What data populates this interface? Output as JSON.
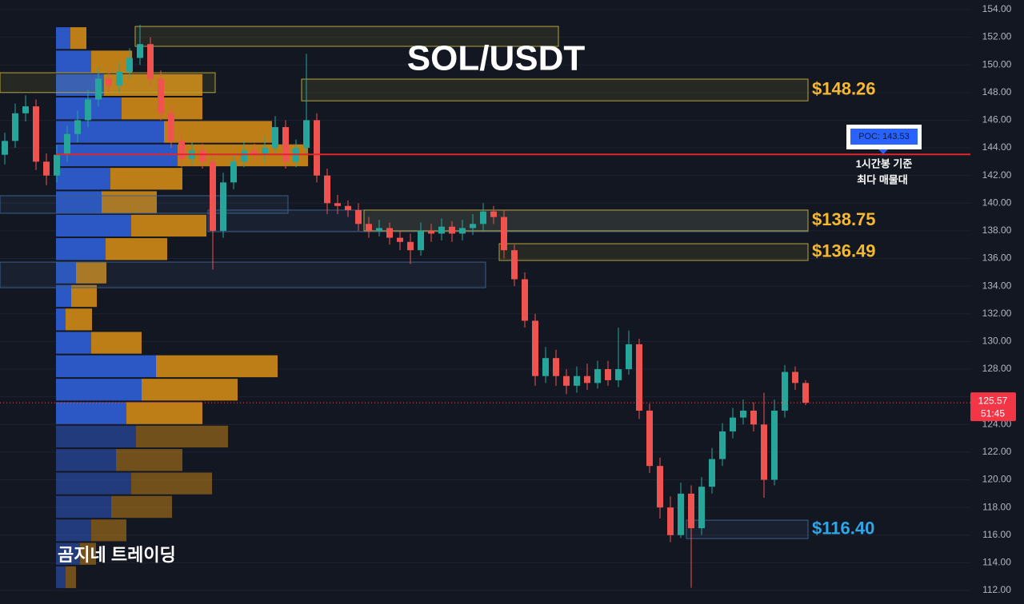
{
  "chart_data": {
    "type": "candlestick",
    "title": "SOL/USDT",
    "watermark": "곰지네 트레이딩",
    "ylim": [
      111.02,
      154.69
    ],
    "yticks": [
      {
        "value": 112,
        "label": "112.00"
      },
      {
        "value": 114,
        "label": "114.00"
      },
      {
        "value": 116,
        "label": "116.00"
      },
      {
        "value": 118,
        "label": "118.00"
      },
      {
        "value": 120,
        "label": "120.00"
      },
      {
        "value": 122,
        "label": "122.00"
      },
      {
        "value": 124,
        "label": "124.00"
      },
      {
        "value": 126,
        "label": "126.00"
      },
      {
        "value": 128,
        "label": "128.00"
      },
      {
        "value": 130,
        "label": "130.00"
      },
      {
        "value": 132,
        "label": "132.00"
      },
      {
        "value": 134,
        "label": "134.00"
      },
      {
        "value": 136,
        "label": "136.00"
      },
      {
        "value": 138,
        "label": "138.00"
      },
      {
        "value": 140,
        "label": "140.00"
      },
      {
        "value": 142,
        "label": "142.00"
      },
      {
        "value": 144,
        "label": "144.00"
      },
      {
        "value": 146,
        "label": "146.00"
      },
      {
        "value": 148,
        "label": "148.00"
      },
      {
        "value": 150,
        "label": "150.00"
      },
      {
        "value": 152,
        "label": "152.00"
      },
      {
        "value": 154,
        "label": "154.00"
      }
    ],
    "grid": true,
    "up_color": "#26a69a",
    "down_color": "#ef5350",
    "open": [
      143.5,
      144.5,
      146.5,
      147,
      143,
      142,
      143.5,
      145,
      146,
      147.5,
      149,
      148.5,
      149.5,
      150.5,
      151.5,
      149,
      146.5,
      144.5,
      143.2,
      143.8,
      143,
      138,
      141.5,
      143,
      143.8,
      143.5,
      144,
      145.5,
      143,
      144,
      146,
      142,
      140,
      139.8,
      139.5,
      138.5,
      138,
      138.2,
      137.5,
      137.2,
      136.6,
      138,
      137.8,
      138.3,
      137.8,
      138.2,
      138.5,
      139.4,
      139,
      136.6,
      134.5,
      131.5,
      127.5,
      128.8,
      127.5,
      126.8,
      127.5,
      127,
      128,
      127.2,
      128,
      129.8,
      125,
      121,
      118,
      116,
      119,
      116.5,
      119.5,
      121.5,
      123.5,
      124.5,
      125,
      124,
      120,
      125,
      127.8,
      127
    ],
    "high": [
      145.1,
      147.2,
      147.8,
      147.5,
      143.6,
      144.2,
      145.6,
      146.7,
      148.2,
      149.8,
      149.6,
      150.2,
      151.2,
      152.9,
      152,
      149.6,
      147,
      145,
      144.4,
      144.3,
      143.5,
      142.2,
      143.6,
      144.5,
      144.3,
      144.8,
      146.3,
      146,
      144.6,
      150.8,
      146.5,
      142.5,
      140.6,
      140.2,
      140,
      139,
      138.8,
      138.6,
      138,
      137.8,
      138.6,
      138.5,
      138.9,
      138.7,
      138.8,
      139.2,
      140,
      139.8,
      139.5,
      137,
      135,
      132,
      129.6,
      129.4,
      128,
      128.2,
      128.4,
      128.6,
      128.6,
      131,
      130.8,
      130.2,
      125.5,
      121.6,
      118.8,
      119.8,
      119.6,
      120.2,
      122.3,
      124.1,
      125.2,
      125.8,
      125.6,
      126.3,
      125.8,
      128.3,
      128.2,
      127.2
    ],
    "low": [
      142.8,
      144,
      145.9,
      142.4,
      141.3,
      141.5,
      143,
      144.4,
      145.5,
      147,
      148,
      148,
      149,
      150,
      148.5,
      146,
      144,
      142.6,
      142.8,
      142.5,
      135.2,
      137.5,
      141,
      142.6,
      143,
      142.9,
      143.5,
      142.5,
      142.6,
      143.5,
      141.5,
      139.2,
      139.2,
      139,
      138,
      137.5,
      137.6,
      137,
      136.6,
      135.6,
      136.2,
      137.2,
      137.3,
      137.2,
      137.3,
      137.7,
      138,
      138.5,
      136,
      134,
      131,
      126.8,
      127,
      126.8,
      126.2,
      126.3,
      126.5,
      126.6,
      126.8,
      126.7,
      127.6,
      124.4,
      120.5,
      117.2,
      115.5,
      115.8,
      112.2,
      116,
      119,
      121,
      123,
      124,
      123.5,
      118.7,
      119.6,
      124.5,
      126.5,
      125.4
    ],
    "close": [
      144.5,
      146.5,
      147,
      143,
      142,
      143.5,
      145,
      146,
      147.5,
      149,
      148.5,
      149.5,
      150.5,
      151.5,
      149,
      146.5,
      144.5,
      143.2,
      143.8,
      143,
      138,
      141.5,
      143,
      143.8,
      143.5,
      144,
      145.5,
      143,
      144,
      146,
      142,
      140,
      139.8,
      139.5,
      138.5,
      138,
      138.2,
      137.5,
      137.2,
      136.6,
      138,
      137.8,
      138.3,
      137.8,
      138.2,
      138.5,
      139.4,
      139,
      136.6,
      134.5,
      131.5,
      127.5,
      128.8,
      127.5,
      126.8,
      127.5,
      127,
      128,
      127.2,
      128,
      129.8,
      125,
      121,
      118,
      116,
      119,
      116.5,
      119.5,
      121.5,
      123.5,
      124.5,
      125,
      124,
      120,
      125,
      127.8,
      127,
      125.57
    ],
    "volume_profile": {
      "bins": [
        152.78,
        151.09,
        149.39,
        147.7,
        146.0,
        144.31,
        142.61,
        140.92,
        139.22,
        137.53,
        135.83,
        134.14,
        132.44,
        130.75,
        129.06,
        127.36,
        125.67,
        123.97,
        122.28,
        120.58,
        118.89,
        117.19,
        115.5,
        113.8,
        112.11
      ],
      "buy_color": "#2f5fd6",
      "sell_color": "#d08a16",
      "buy": [
        18,
        44,
        60,
        82,
        135,
        152,
        68,
        57,
        94,
        62,
        25,
        19,
        12,
        44,
        125,
        107,
        88,
        100,
        75,
        94,
        69,
        44,
        30,
        12
      ],
      "sell": [
        20,
        51,
        123,
        101,
        135,
        163,
        90,
        69,
        94,
        77,
        38,
        32,
        33,
        63,
        152,
        120,
        95,
        115,
        83,
        101,
        76,
        44,
        20,
        13
      ]
    },
    "zones": [
      {
        "kind": "supply",
        "low": 151.34,
        "high": 152.78,
        "from": 13,
        "to": 53
      },
      {
        "kind": "supply",
        "low": 148.0,
        "high": 149.43,
        "from": 0,
        "to": 20
      },
      {
        "kind": "supply",
        "low": 147.4,
        "high": 148.97,
        "from": 29,
        "to": 77,
        "label": "$148.26"
      },
      {
        "kind": "demand",
        "low": 139.27,
        "high": 140.54,
        "from": 0,
        "to": 27
      },
      {
        "kind": "demand",
        "low": 137.94,
        "high": 139.5,
        "from": 20,
        "to": 77
      },
      {
        "kind": "supply",
        "low": 138.0,
        "high": 139.5,
        "from": 35,
        "to": 77,
        "label": "$138.75"
      },
      {
        "kind": "demand",
        "low": 133.89,
        "high": 135.74,
        "from": 0,
        "to": 46
      },
      {
        "kind": "supply",
        "low": 135.86,
        "high": 137.07,
        "from": 48,
        "to": 77,
        "label": "$136.49"
      },
      {
        "kind": "demand",
        "low": 115.75,
        "high": 117.08,
        "from": 66,
        "to": 77,
        "label": "$116.40"
      }
    ],
    "poc": {
      "value": 143.53,
      "label": "POC: 143.53",
      "color": "#e0262b"
    },
    "annotations": [
      "1시간봉 기준",
      "최다 매물대"
    ],
    "last_price": 125.57,
    "countdown": "51:45"
  }
}
